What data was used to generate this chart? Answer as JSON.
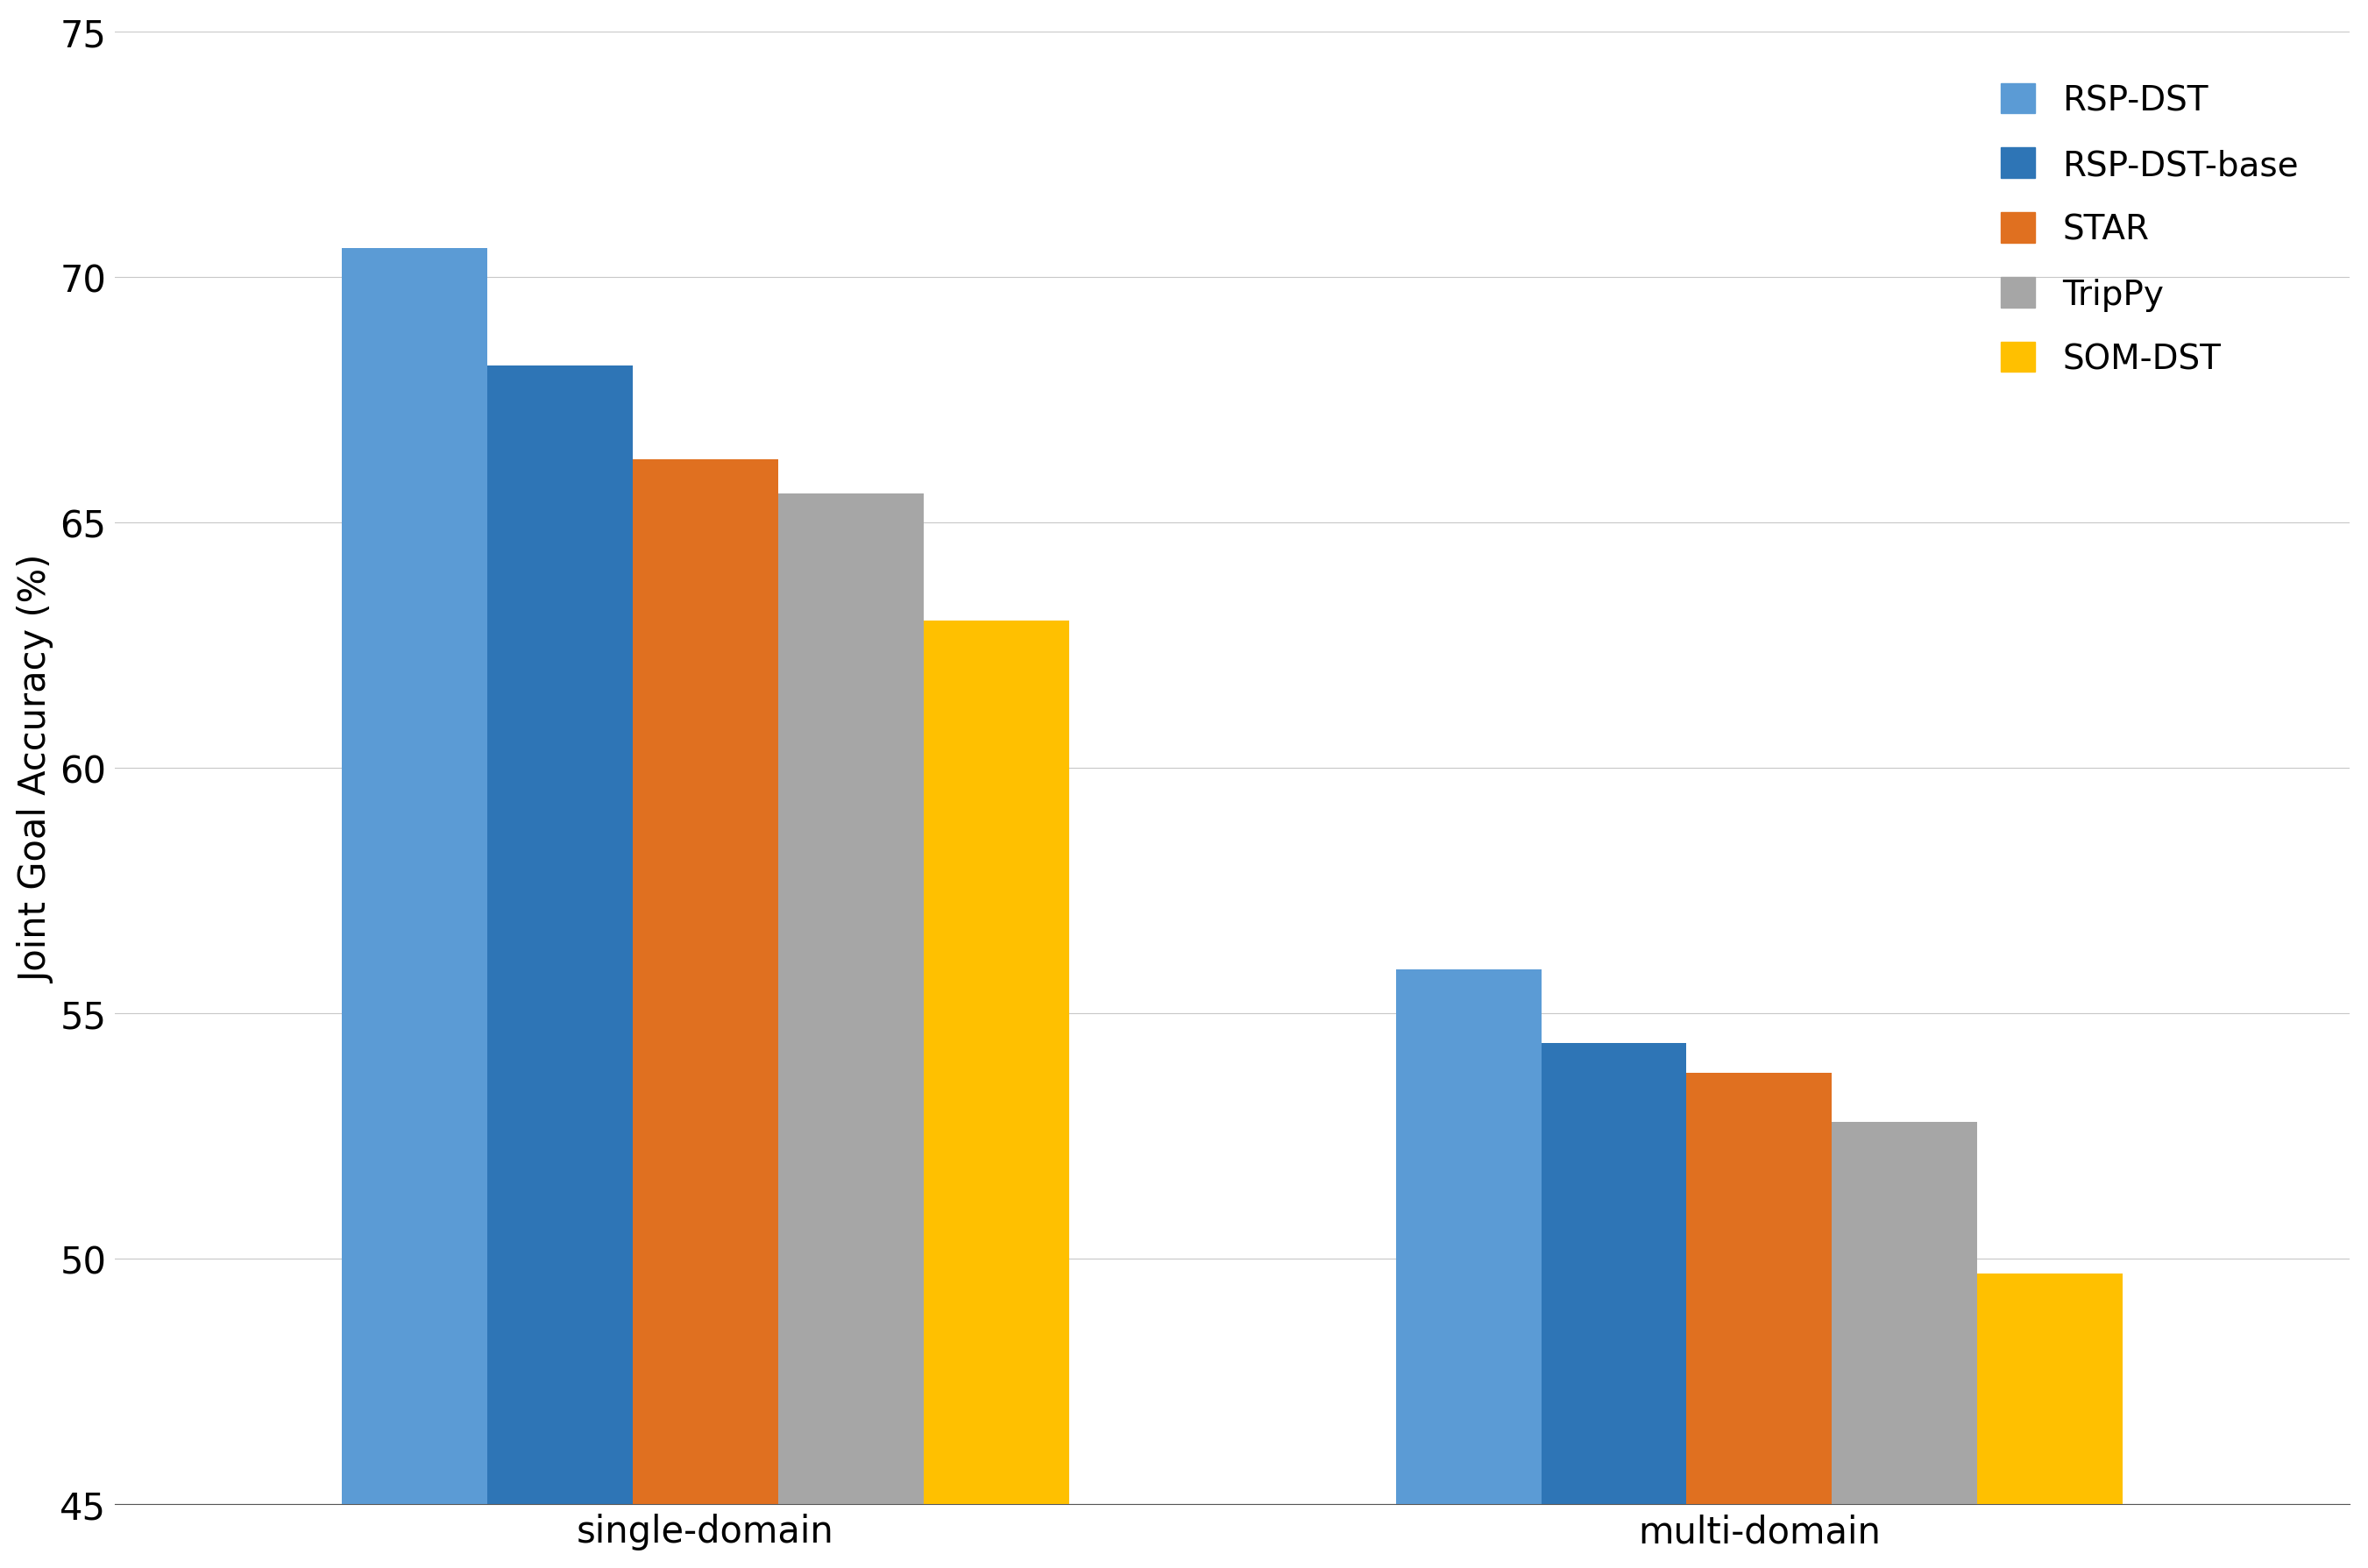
{
  "categories": [
    "single-domain",
    "multi-domain"
  ],
  "series": [
    {
      "label": "RSP-DST",
      "color": "#5B9BD5",
      "values": [
        70.6,
        55.9
      ]
    },
    {
      "label": "RSP-DST-base",
      "color": "#2E75B6",
      "values": [
        68.2,
        54.4
      ]
    },
    {
      "label": "STAR",
      "color": "#E07020",
      "values": [
        66.3,
        53.8
      ]
    },
    {
      "label": "TripPy",
      "color": "#A6A6A6",
      "values": [
        65.6,
        52.8
      ]
    },
    {
      "label": "SOM-DST",
      "color": "#FFC000",
      "values": [
        63.0,
        49.7
      ]
    }
  ],
  "ylabel": "Joint Goal Accuracy (%)",
  "ylim": [
    45,
    75
  ],
  "yticks": [
    45,
    50,
    55,
    60,
    65,
    70,
    75
  ],
  "ybase": 45,
  "background_color": "#FFFFFF",
  "grid_color": "#C8C8C8",
  "bar_width": 0.16,
  "group_centers": [
    0.42,
    1.58
  ],
  "legend_fontsize": 28,
  "tick_fontsize": 30,
  "ylabel_fontsize": 30
}
